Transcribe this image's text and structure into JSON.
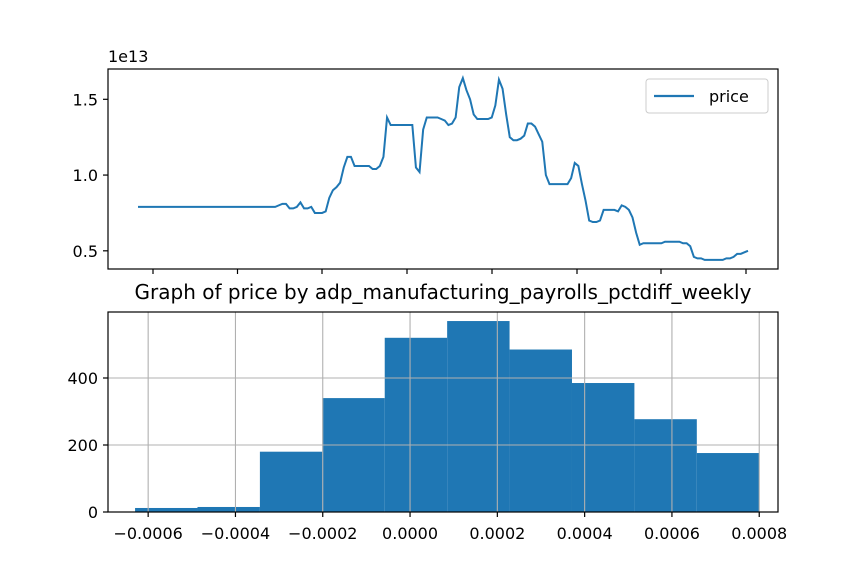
{
  "chart_data": [
    {
      "type": "line",
      "title": "",
      "xlabel": "",
      "ylabel": "",
      "y_offset_label": "1e13",
      "ylim": [
        0.38,
        1.7
      ],
      "yticks": [
        0.5,
        1.0,
        1.5
      ],
      "ytick_labels": [
        "0.5",
        "1.0",
        "1.5"
      ],
      "grid": false,
      "legend_placement": "top-right",
      "series": [
        {
          "name": "price",
          "color": "#1f77b4",
          "y": [
            0.79,
            0.79,
            0.79,
            0.79,
            0.79,
            0.79,
            0.79,
            0.79,
            0.79,
            0.79,
            0.79,
            0.79,
            0.79,
            0.79,
            0.79,
            0.79,
            0.79,
            0.79,
            0.79,
            0.79,
            0.79,
            0.79,
            0.79,
            0.79,
            0.79,
            0.79,
            0.79,
            0.79,
            0.79,
            0.79,
            0.79,
            0.79,
            0.79,
            0.79,
            0.79,
            0.79,
            0.79,
            0.79,
            0.79,
            0.8,
            0.81,
            0.81,
            0.78,
            0.78,
            0.79,
            0.82,
            0.78,
            0.78,
            0.79,
            0.75,
            0.75,
            0.75,
            0.76,
            0.85,
            0.9,
            0.92,
            0.95,
            1.05,
            1.12,
            1.12,
            1.06,
            1.06,
            1.06,
            1.06,
            1.06,
            1.04,
            1.04,
            1.06,
            1.12,
            1.38,
            1.33,
            1.33,
            1.33,
            1.33,
            1.33,
            1.33,
            1.33,
            1.05,
            1.02,
            1.3,
            1.38,
            1.38,
            1.38,
            1.38,
            1.37,
            1.36,
            1.33,
            1.34,
            1.38,
            1.58,
            1.64,
            1.56,
            1.5,
            1.4,
            1.37,
            1.37,
            1.37,
            1.37,
            1.38,
            1.46,
            1.63,
            1.57,
            1.4,
            1.25,
            1.23,
            1.23,
            1.24,
            1.26,
            1.34,
            1.34,
            1.32,
            1.27,
            1.22,
            1.0,
            0.94,
            0.94,
            0.94,
            0.94,
            0.94,
            0.94,
            0.98,
            1.08,
            1.06,
            0.94,
            0.83,
            0.7,
            0.69,
            0.69,
            0.7,
            0.77,
            0.77,
            0.77,
            0.77,
            0.76,
            0.8,
            0.79,
            0.77,
            0.72,
            0.62,
            0.54,
            0.55,
            0.55,
            0.55,
            0.55,
            0.55,
            0.55,
            0.56,
            0.56,
            0.56,
            0.56,
            0.56,
            0.55,
            0.55,
            0.53,
            0.46,
            0.45,
            0.45,
            0.44,
            0.44,
            0.44,
            0.44,
            0.44,
            0.44,
            0.45,
            0.45,
            0.46,
            0.48,
            0.48,
            0.49,
            0.5
          ]
        }
      ]
    },
    {
      "type": "bar",
      "title": "Graph of price by adp_manufacturing_payrolls_pctdiff_weekly",
      "xlabel": "",
      "ylabel": "",
      "xlim": [
        -0.000692,
        0.000843
      ],
      "ylim": [
        0,
        597
      ],
      "xticks": [
        -0.0006,
        -0.0004,
        -0.0002,
        0.0,
        0.0002,
        0.0004,
        0.0006,
        0.0008
      ],
      "xtick_labels": [
        "−0.0006",
        "−0.0004",
        "−0.0002",
        "0.0000",
        "0.0002",
        "0.0004",
        "0.0006",
        "0.0008"
      ],
      "yticks": [
        0,
        200,
        400
      ],
      "ytick_labels": [
        "0",
        "200",
        "400"
      ],
      "grid": true,
      "color": "#1f77b4",
      "bins": [
        {
          "x0": -0.00063,
          "x1": -0.000487,
          "count": 12
        },
        {
          "x0": -0.000487,
          "x1": -0.000344,
          "count": 15
        },
        {
          "x0": -0.000344,
          "x1": -0.000201,
          "count": 180
        },
        {
          "x0": -0.000201,
          "x1": -5.8e-05,
          "count": 340
        },
        {
          "x0": -5.8e-05,
          "x1": 8.5e-05,
          "count": 520
        },
        {
          "x0": 8.5e-05,
          "x1": 0.000228,
          "count": 570
        },
        {
          "x0": 0.000228,
          "x1": 0.000371,
          "count": 485
        },
        {
          "x0": 0.000371,
          "x1": 0.000514,
          "count": 385
        },
        {
          "x0": 0.000514,
          "x1": 0.000657,
          "count": 277
        },
        {
          "x0": 0.000657,
          "x1": 0.0008,
          "count": 176
        }
      ]
    }
  ]
}
